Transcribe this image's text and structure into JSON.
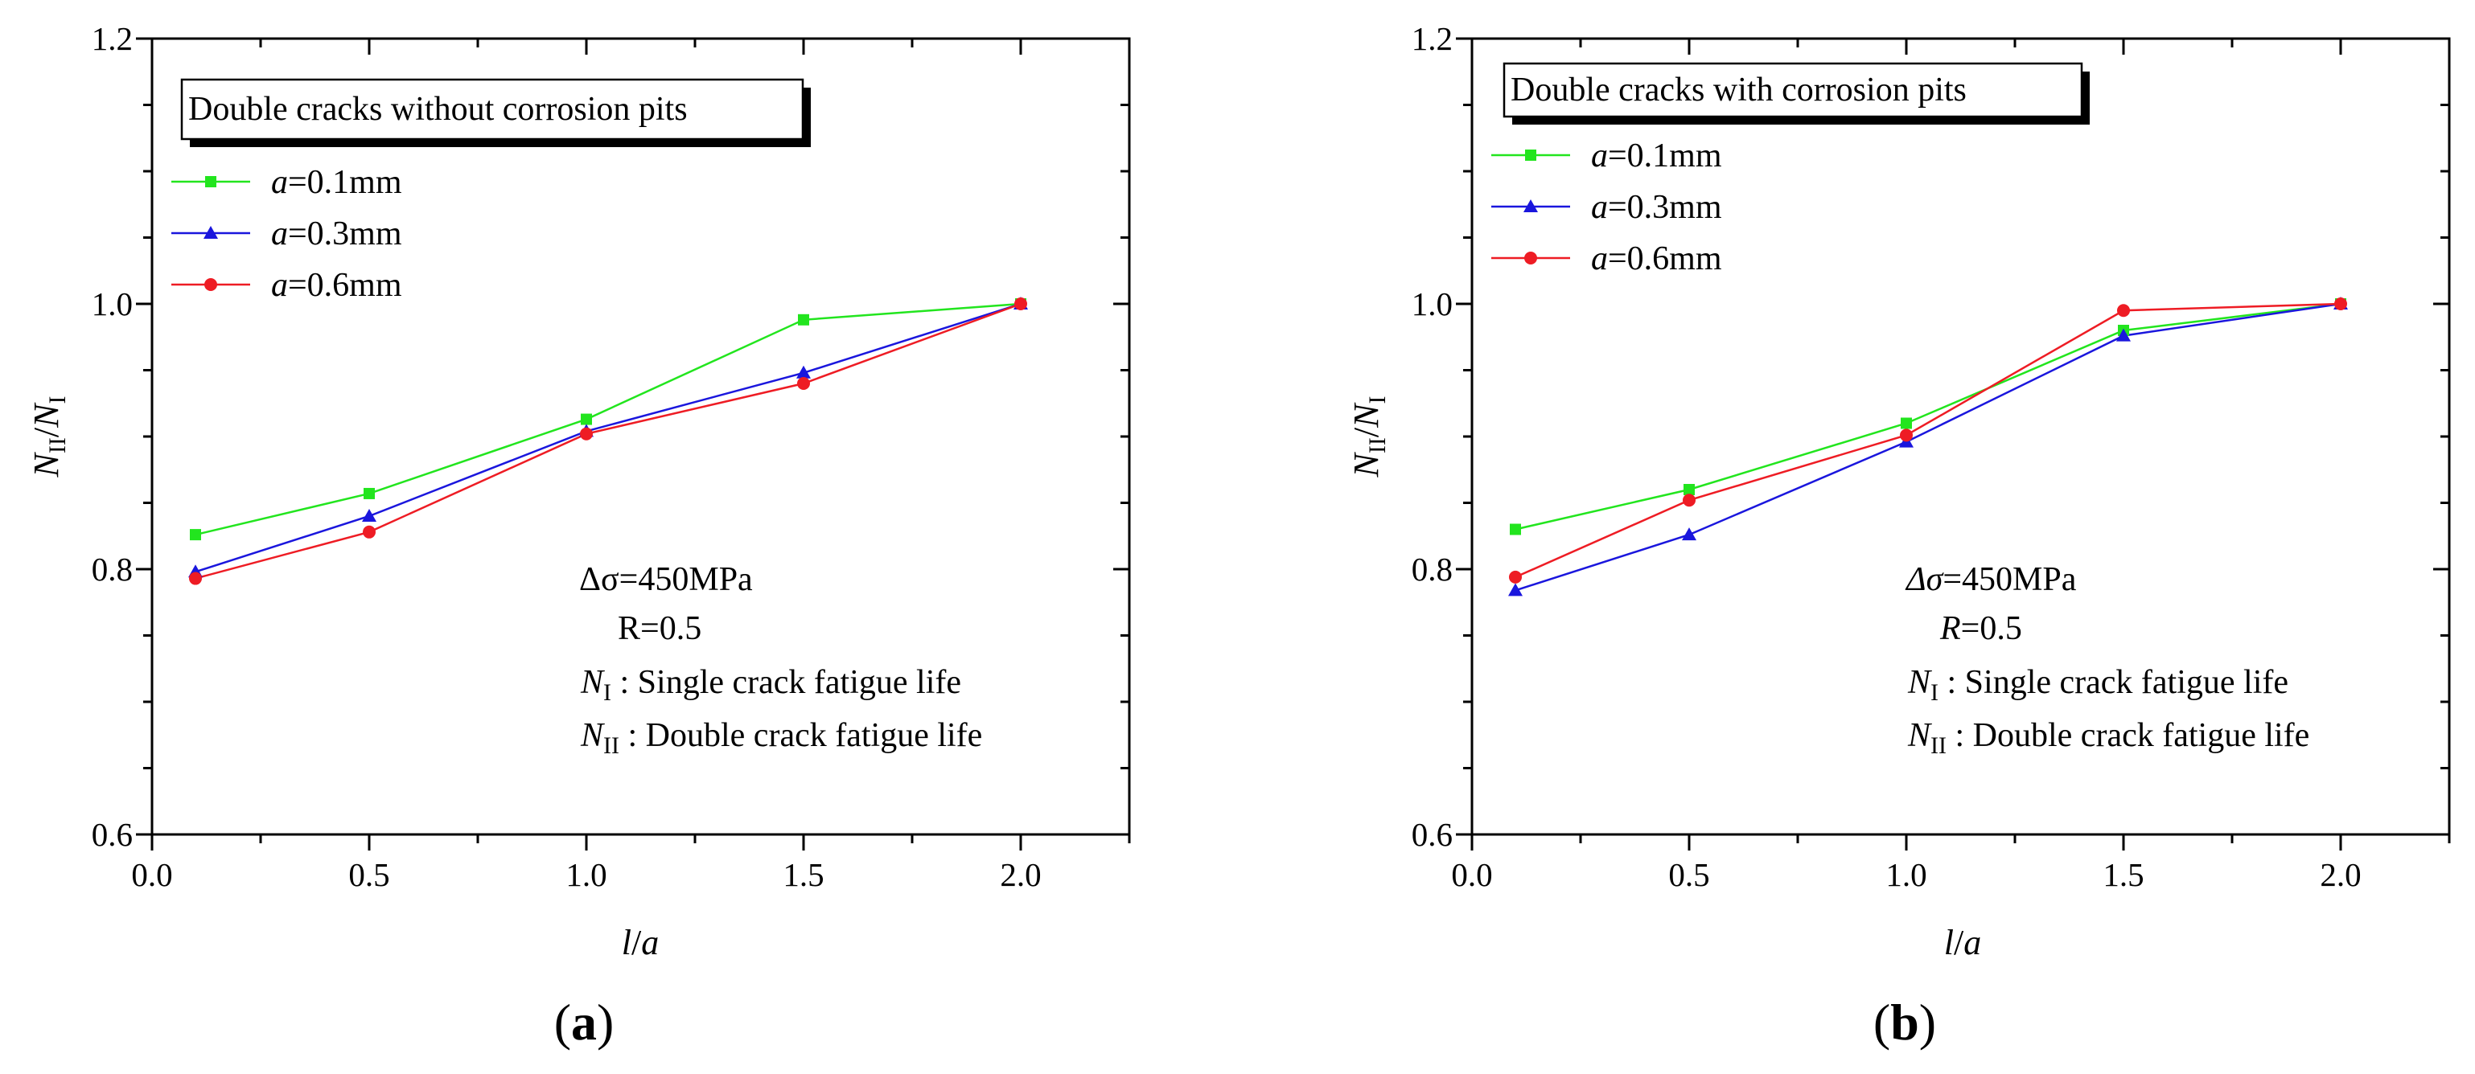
{
  "chart_data": [
    {
      "type": "line",
      "panel_label": "(a)",
      "title": "Double cracks without corrosion pits",
      "xlabel": "l/a",
      "ylabel": "N_II/N_I",
      "xlim": [
        0.0,
        2.25
      ],
      "ylim": [
        0.6,
        1.2
      ],
      "x_ticks": [
        "0.0",
        "0.5",
        "1.0",
        "1.5",
        "2.0"
      ],
      "y_ticks": [
        "0.6",
        "0.8",
        "1.0",
        "1.2"
      ],
      "legend_position": "top-left",
      "x": [
        0.1,
        0.5,
        1.0,
        1.5,
        2.0
      ],
      "series": [
        {
          "name": "a=0.1mm",
          "var": "a",
          "rest": "=0.1mm",
          "color": "#22e51e",
          "marker": "square",
          "values": [
            0.826,
            0.857,
            0.913,
            0.988,
            1.0
          ]
        },
        {
          "name": "a=0.3mm",
          "var": "a",
          "rest": "=0.3mm",
          "color": "#1a16dd",
          "marker": "triangle",
          "values": [
            0.798,
            0.84,
            0.904,
            0.948,
            1.0
          ]
        },
        {
          "name": "a=0.6mm",
          "var": "a",
          "rest": "=0.6mm",
          "color": "#ee1c24",
          "marker": "circle",
          "values": [
            0.793,
            0.828,
            0.902,
            0.94,
            1.0
          ]
        }
      ],
      "annotations": {
        "stress": "Δσ=450MPa",
        "ratio": "R=0.5",
        "n1": "N_I : Single crack fatigue life",
        "n2": "N_II : Double crack fatigue life"
      }
    },
    {
      "type": "line",
      "panel_label": "(b)",
      "title": "Double cracks with corrosion pits",
      "xlabel": "l/a",
      "ylabel": "N_II/N_I",
      "xlim": [
        0.0,
        2.25
      ],
      "ylim": [
        0.6,
        1.2
      ],
      "x_ticks": [
        "0.0",
        "0.5",
        "1.0",
        "1.5",
        "2.0"
      ],
      "y_ticks": [
        "0.6",
        "0.8",
        "1.0",
        "1.2"
      ],
      "legend_position": "top-left",
      "x": [
        0.1,
        0.5,
        1.0,
        1.5,
        2.0
      ],
      "series": [
        {
          "name": "a=0.1mm",
          "var": "a",
          "rest": "=0.1mm",
          "color": "#22e51e",
          "marker": "square",
          "values": [
            0.83,
            0.86,
            0.91,
            0.98,
            1.0
          ]
        },
        {
          "name": "a=0.3mm",
          "var": "a",
          "rest": "=0.3mm",
          "color": "#1a16dd",
          "marker": "triangle",
          "values": [
            0.784,
            0.826,
            0.896,
            0.976,
            1.0
          ]
        },
        {
          "name": "a=0.6mm",
          "var": "a",
          "rest": "=0.6mm",
          "color": "#ee1c24",
          "marker": "circle",
          "values": [
            0.794,
            0.852,
            0.901,
            0.995,
            1.0
          ]
        }
      ],
      "annotations": {
        "stress": "Δσ=450MPa",
        "ratio": "R=0.5",
        "n1": "N_I : Single crack fatigue life",
        "n2": "N_II : Double crack fatigue life"
      }
    }
  ],
  "text": {
    "x_var_l": "l",
    "x_var_slash": "/",
    "x_var_a": "a",
    "y_N": "N",
    "y_sub_II": "II",
    "y_slash": "/",
    "y_sub_I": "I",
    "delta": "Δσ",
    "stress_rest": "=450MPa",
    "ratio_var": "R",
    "ratio_rest": "=0.5",
    "n_letter": "N",
    "sub_I": "I",
    "sub_II": "II",
    "n1_desc": " : Single crack fatigue life",
    "n2_desc": " : Double crack fatigue life",
    "paren_open": "(",
    "paren_close": ")",
    "label_a": "a",
    "label_b": "b"
  }
}
